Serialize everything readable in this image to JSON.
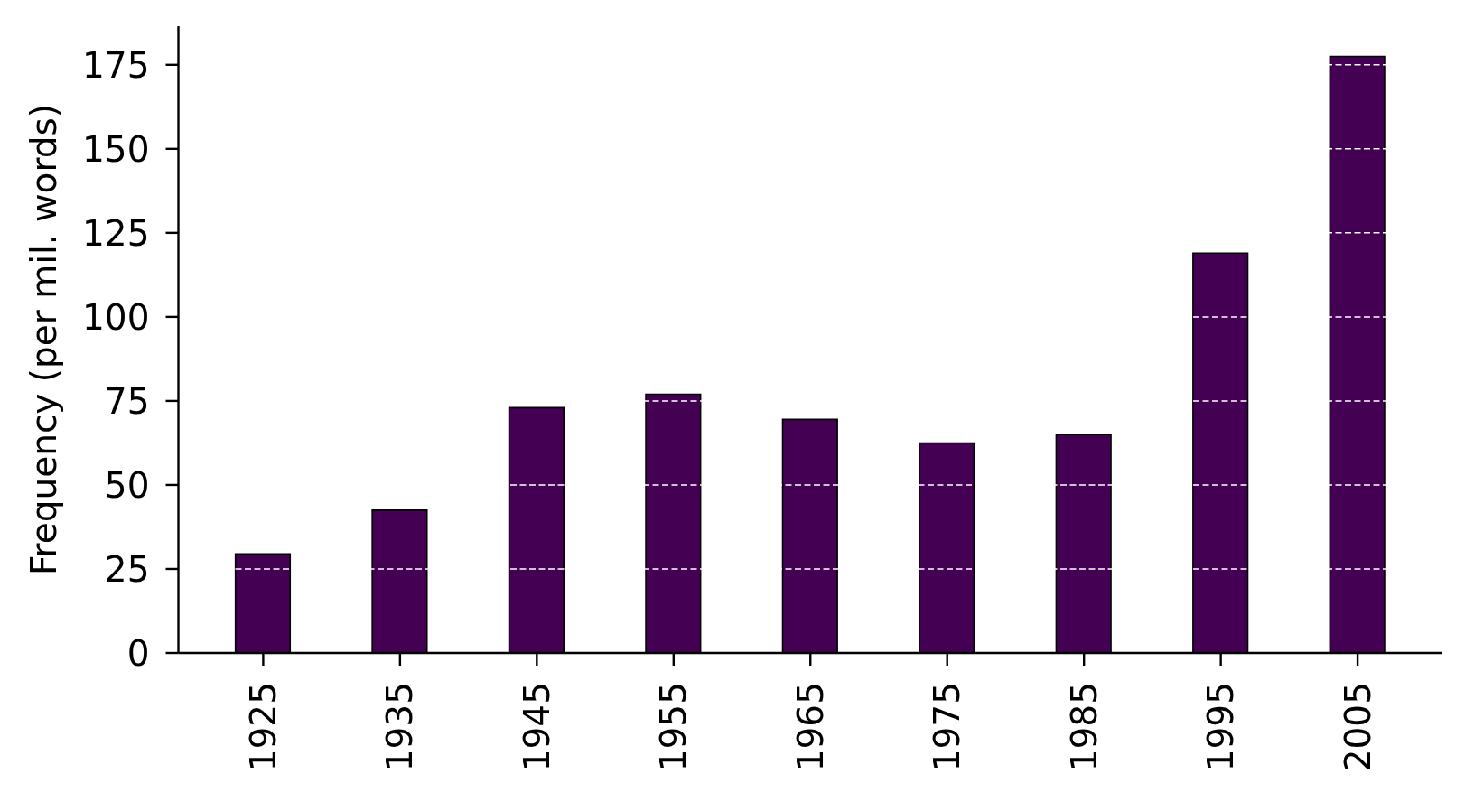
{
  "chart_data": {
    "type": "bar",
    "ylabel": "Frequency (per mil. words)",
    "categories": [
      "1925",
      "1935",
      "1945",
      "1955",
      "1965",
      "1975",
      "1985",
      "1995",
      "2005"
    ],
    "values": [
      29.5,
      42.5,
      73,
      77,
      69.5,
      62.5,
      65,
      119,
      177.5
    ],
    "color": "#440154",
    "ylim": [
      0,
      186.5
    ],
    "yticks": [
      0,
      25,
      50,
      75,
      100,
      125,
      150,
      175
    ],
    "grid": "y"
  }
}
